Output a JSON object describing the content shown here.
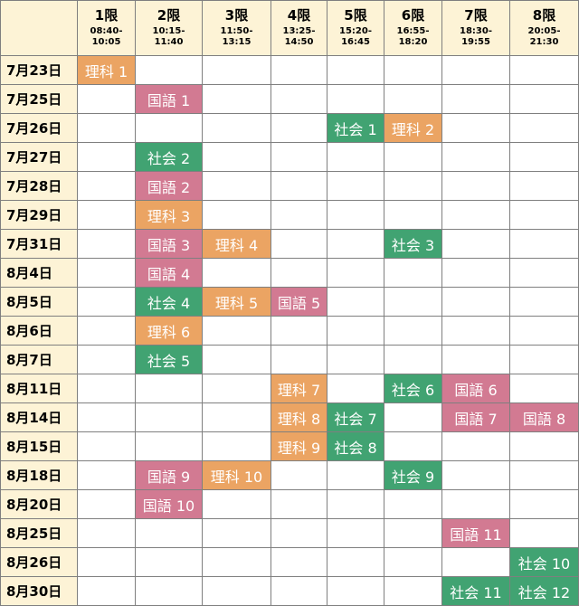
{
  "colors": {
    "header_bg": "#fdf3d6",
    "grid_line": "#7f7f7f",
    "理科": "#eba463",
    "国語": "#d27a92",
    "社会": "#41a372"
  },
  "periods": [
    {
      "name": "1限",
      "time": "08:40-10:05"
    },
    {
      "name": "2限",
      "time": "10:15-11:40"
    },
    {
      "name": "3限",
      "time": "11:50-13:15"
    },
    {
      "name": "4限",
      "time": "13:25-14:50"
    },
    {
      "name": "5限",
      "time": "15:20-16:45"
    },
    {
      "name": "6限",
      "time": "16:55-18:20"
    },
    {
      "name": "7限",
      "time": "18:30-19:55"
    },
    {
      "name": "8限",
      "time": "20:05-21:30"
    }
  ],
  "rows": [
    {
      "date": "7月23日",
      "cells": [
        {
          "subject": "理科",
          "label": "理科 1"
        },
        null,
        null,
        null,
        null,
        null,
        null,
        null
      ]
    },
    {
      "date": "7月25日",
      "cells": [
        null,
        {
          "subject": "国語",
          "label": "国語 1"
        },
        null,
        null,
        null,
        null,
        null,
        null
      ]
    },
    {
      "date": "7月26日",
      "cells": [
        null,
        null,
        null,
        null,
        {
          "subject": "社会",
          "label": "社会 1"
        },
        {
          "subject": "理科",
          "label": "理科 2"
        },
        null,
        null
      ]
    },
    {
      "date": "7月27日",
      "cells": [
        null,
        {
          "subject": "社会",
          "label": "社会 2"
        },
        null,
        null,
        null,
        null,
        null,
        null
      ]
    },
    {
      "date": "7月28日",
      "cells": [
        null,
        {
          "subject": "国語",
          "label": "国語 2"
        },
        null,
        null,
        null,
        null,
        null,
        null
      ]
    },
    {
      "date": "7月29日",
      "cells": [
        null,
        {
          "subject": "理科",
          "label": "理科 3"
        },
        null,
        null,
        null,
        null,
        null,
        null
      ]
    },
    {
      "date": "7月31日",
      "cells": [
        null,
        {
          "subject": "国語",
          "label": "国語 3"
        },
        {
          "subject": "理科",
          "label": "理科 4"
        },
        null,
        null,
        {
          "subject": "社会",
          "label": "社会 3"
        },
        null,
        null
      ]
    },
    {
      "date": "8月4日",
      "cells": [
        null,
        {
          "subject": "国語",
          "label": "国語 4"
        },
        null,
        null,
        null,
        null,
        null,
        null
      ]
    },
    {
      "date": "8月5日",
      "cells": [
        null,
        {
          "subject": "社会",
          "label": "社会 4"
        },
        {
          "subject": "理科",
          "label": "理科 5"
        },
        {
          "subject": "国語",
          "label": "国語 5"
        },
        null,
        null,
        null,
        null
      ]
    },
    {
      "date": "8月6日",
      "cells": [
        null,
        {
          "subject": "理科",
          "label": "理科 6"
        },
        null,
        null,
        null,
        null,
        null,
        null
      ]
    },
    {
      "date": "8月7日",
      "cells": [
        null,
        {
          "subject": "社会",
          "label": "社会 5"
        },
        null,
        null,
        null,
        null,
        null,
        null
      ]
    },
    {
      "date": "8月11日",
      "cells": [
        null,
        null,
        null,
        {
          "subject": "理科",
          "label": "理科 7"
        },
        null,
        {
          "subject": "社会",
          "label": "社会 6"
        },
        {
          "subject": "国語",
          "label": "国語 6"
        },
        null
      ]
    },
    {
      "date": "8月14日",
      "cells": [
        null,
        null,
        null,
        {
          "subject": "理科",
          "label": "理科 8"
        },
        {
          "subject": "社会",
          "label": "社会 7"
        },
        null,
        {
          "subject": "国語",
          "label": "国語 7"
        },
        {
          "subject": "国語",
          "label": "国語 8"
        }
      ]
    },
    {
      "date": "8月15日",
      "cells": [
        null,
        null,
        null,
        {
          "subject": "理科",
          "label": "理科 9"
        },
        {
          "subject": "社会",
          "label": "社会 8"
        },
        null,
        null,
        null
      ]
    },
    {
      "date": "8月18日",
      "cells": [
        null,
        {
          "subject": "国語",
          "label": "国語 9"
        },
        {
          "subject": "理科",
          "label": "理科 10"
        },
        null,
        null,
        {
          "subject": "社会",
          "label": "社会 9"
        },
        null,
        null
      ]
    },
    {
      "date": "8月20日",
      "cells": [
        null,
        {
          "subject": "国語",
          "label": "国語 10"
        },
        null,
        null,
        null,
        null,
        null,
        null
      ]
    },
    {
      "date": "8月25日",
      "cells": [
        null,
        null,
        null,
        null,
        null,
        null,
        {
          "subject": "国語",
          "label": "国語 11"
        },
        null
      ]
    },
    {
      "date": "8月26日",
      "cells": [
        null,
        null,
        null,
        null,
        null,
        null,
        null,
        {
          "subject": "社会",
          "label": "社会 10"
        }
      ]
    },
    {
      "date": "8月30日",
      "cells": [
        null,
        null,
        null,
        null,
        null,
        null,
        {
          "subject": "社会",
          "label": "社会 11"
        },
        {
          "subject": "社会",
          "label": "社会 12"
        }
      ]
    }
  ]
}
